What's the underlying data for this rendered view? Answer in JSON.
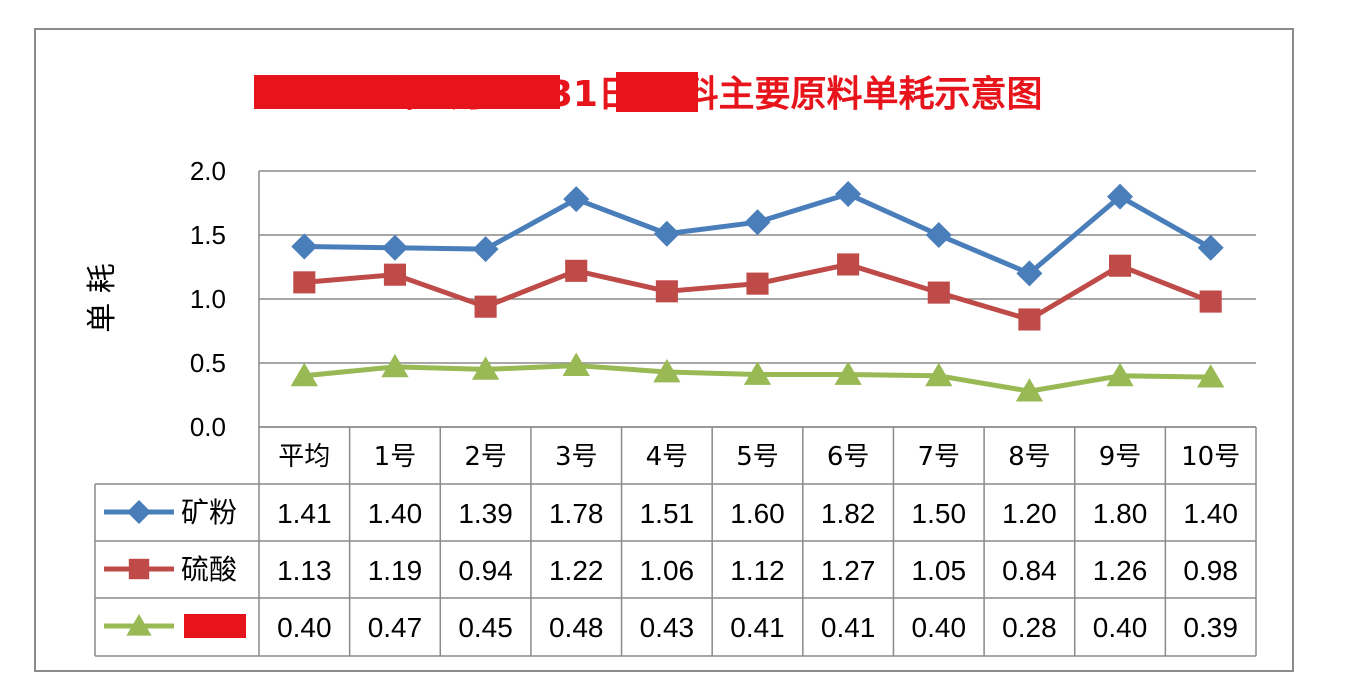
{
  "chart_data": {
    "type": "line",
    "title": "2018年1月1—31日 原料主要原料单耗示意图",
    "ylabel": "单 耗",
    "xlabel": "",
    "ylim": [
      0,
      2.0
    ],
    "yticks": [
      "0.0",
      "0.5",
      "1.0",
      "1.5",
      "2.0"
    ],
    "grid": true,
    "legend": "data-table-left",
    "categories": [
      "平均",
      "1号",
      "2号",
      "3号",
      "4号",
      "5号",
      "6号",
      "7号",
      "8号",
      "9号",
      "10号"
    ],
    "series": [
      {
        "name": "矿粉",
        "color": "#4a7ebb",
        "marker": "diamond",
        "values": [
          1.41,
          1.4,
          1.39,
          1.78,
          1.51,
          1.6,
          1.82,
          1.5,
          1.2,
          1.8,
          1.4
        ],
        "labels": [
          "1.41",
          "1.40",
          "1.39",
          "1.78",
          "1.51",
          "1.60",
          "1.82",
          "1.50",
          "1.20",
          "1.80",
          "1.40"
        ]
      },
      {
        "name": "硫酸",
        "color": "#be4b48",
        "marker": "square",
        "values": [
          1.13,
          1.19,
          0.94,
          1.22,
          1.06,
          1.12,
          1.27,
          1.05,
          0.84,
          1.26,
          0.98
        ],
        "labels": [
          "1.13",
          "1.19",
          "0.94",
          "1.22",
          "1.06",
          "1.12",
          "1.27",
          "1.05",
          "0.84",
          "1.26",
          "0.98"
        ]
      },
      {
        "name": "",
        "color": "#98b954",
        "marker": "triangle",
        "values": [
          0.4,
          0.47,
          0.45,
          0.48,
          0.43,
          0.41,
          0.41,
          0.4,
          0.28,
          0.4,
          0.39
        ],
        "labels": [
          "0.40",
          "0.47",
          "0.45",
          "0.48",
          "0.43",
          "0.41",
          "0.41",
          "0.40",
          "0.28",
          "0.40",
          "0.39"
        ]
      }
    ],
    "redaction_color": "#e8141c"
  }
}
